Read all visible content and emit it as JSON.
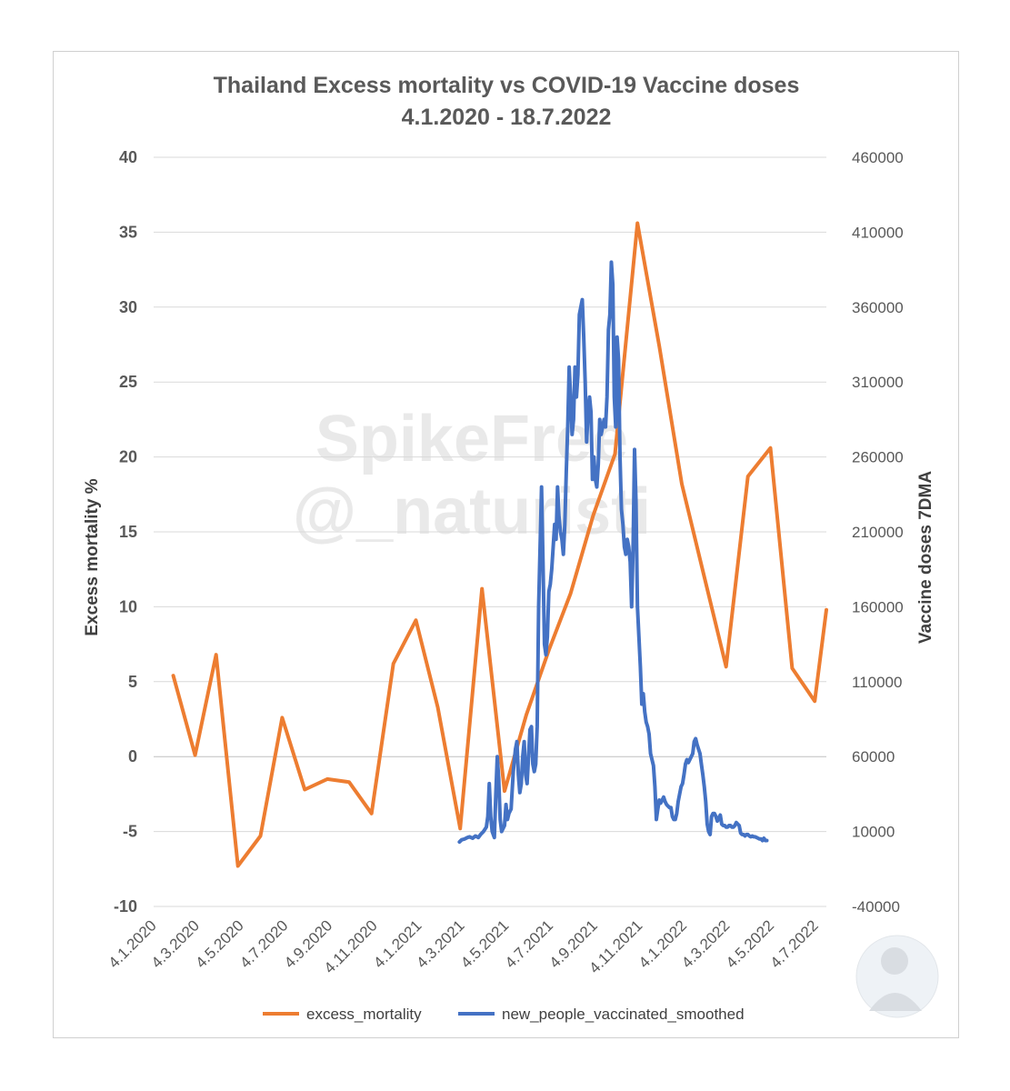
{
  "watermark": {
    "line1": "SpikeFree",
    "line2": "@_naturisti"
  },
  "chart_data": {
    "type": "line",
    "title": "Thailand Excess mortality vs COVID-19 Vaccine doses",
    "subtitle": "4.1.2020 - 18.7.2022",
    "ylabel": "Excess mortality %",
    "y2label": "Vaccine doses 7DMA",
    "ylim": [
      -10,
      40
    ],
    "y2lim": [
      -40000,
      460000
    ],
    "yticks": [
      "-10",
      "-5",
      "0",
      "5",
      "10",
      "15",
      "20",
      "25",
      "30",
      "35",
      "40"
    ],
    "y2ticks": [
      "-40000",
      "10000",
      "60000",
      "110000",
      "160000",
      "210000",
      "260000",
      "310000",
      "360000",
      "410000",
      "460000"
    ],
    "x_range_days": [
      0,
      926
    ],
    "xtick_days": [
      0,
      59,
      120,
      181,
      242,
      304,
      365,
      424,
      485,
      546,
      607,
      669,
      730,
      789,
      850,
      911
    ],
    "xtick_labels": [
      "4.1.2020",
      "4.3.2020",
      "4.5.2020",
      "4.7.2020",
      "4.9.2020",
      "4.11.2020",
      "4.1.2021",
      "4.3.2021",
      "4.5.2021",
      "4.7.2021",
      "4.9.2021",
      "4.11.2021",
      "4.1.2022",
      "4.3.2022",
      "4.5.2022",
      "4.7.2022"
    ],
    "legend_position": "bottom",
    "series": [
      {
        "name": "excess_mortality",
        "axis": "left",
        "color": "#ED7D31",
        "points": [
          [
            27,
            5.4
          ],
          [
            57,
            0.1
          ],
          [
            86,
            6.8
          ],
          [
            116,
            -7.3
          ],
          [
            147,
            -5.3
          ],
          [
            177,
            2.6
          ],
          [
            208,
            -2.2
          ],
          [
            239,
            -1.5
          ],
          [
            269,
            -1.7
          ],
          [
            300,
            -3.8
          ],
          [
            330,
            6.2
          ],
          [
            361,
            9.1
          ],
          [
            391,
            3.3
          ],
          [
            422,
            -4.8
          ],
          [
            452,
            11.2
          ],
          [
            483,
            -2.3
          ],
          [
            513,
            2.8
          ],
          [
            544,
            7.1
          ],
          [
            574,
            10.9
          ],
          [
            605,
            16.1
          ],
          [
            635,
            20.2
          ],
          [
            666,
            35.6
          ],
          [
            696,
            27.4
          ],
          [
            727,
            18.2
          ],
          [
            757,
            12.2
          ],
          [
            788,
            6.0
          ],
          [
            818,
            18.7
          ],
          [
            849,
            20.6
          ],
          [
            879,
            5.9
          ],
          [
            910,
            3.7
          ],
          [
            926,
            9.8
          ]
        ]
      },
      {
        "name": "new_people_vaccinated_smoothed",
        "axis": "right",
        "color": "#4472C4",
        "points": [
          [
            421,
            3000
          ],
          [
            424,
            4500
          ],
          [
            428,
            5000
          ],
          [
            432,
            6000
          ],
          [
            435,
            6500
          ],
          [
            439,
            5500
          ],
          [
            443,
            7000
          ],
          [
            447,
            6000
          ],
          [
            450,
            8000
          ],
          [
            454,
            10000
          ],
          [
            458,
            13000
          ],
          [
            460,
            20000
          ],
          [
            462,
            42000
          ],
          [
            464,
            20000
          ],
          [
            466,
            10000
          ],
          [
            469,
            6000
          ],
          [
            471,
            35000
          ],
          [
            473,
            60000
          ],
          [
            475,
            45000
          ],
          [
            477,
            18000
          ],
          [
            479,
            10000
          ],
          [
            481,
            12000
          ],
          [
            483,
            14000
          ],
          [
            485,
            28000
          ],
          [
            487,
            18000
          ],
          [
            489,
            22000
          ],
          [
            492,
            25000
          ],
          [
            495,
            50000
          ],
          [
            498,
            65000
          ],
          [
            500,
            70000
          ],
          [
            502,
            48000
          ],
          [
            504,
            36000
          ],
          [
            506,
            42000
          ],
          [
            508,
            60000
          ],
          [
            510,
            70000
          ],
          [
            512,
            48000
          ],
          [
            514,
            42000
          ],
          [
            516,
            60000
          ],
          [
            518,
            78000
          ],
          [
            520,
            80000
          ],
          [
            522,
            55000
          ],
          [
            524,
            50000
          ],
          [
            526,
            55000
          ],
          [
            528,
            80000
          ],
          [
            530,
            160000
          ],
          [
            532,
            200000
          ],
          [
            534,
            240000
          ],
          [
            536,
            190000
          ],
          [
            538,
            135000
          ],
          [
            540,
            128000
          ],
          [
            542,
            140000
          ],
          [
            544,
            170000
          ],
          [
            546,
            175000
          ],
          [
            548,
            185000
          ],
          [
            550,
            200000
          ],
          [
            552,
            215000
          ],
          [
            554,
            205000
          ],
          [
            556,
            240000
          ],
          [
            558,
            220000
          ],
          [
            560,
            210000
          ],
          [
            562,
            205000
          ],
          [
            564,
            195000
          ],
          [
            566,
            215000
          ],
          [
            568,
            250000
          ],
          [
            570,
            280000
          ],
          [
            572,
            320000
          ],
          [
            574,
            300000
          ],
          [
            576,
            275000
          ],
          [
            578,
            285000
          ],
          [
            580,
            320000
          ],
          [
            582,
            300000
          ],
          [
            584,
            315000
          ],
          [
            586,
            355000
          ],
          [
            588,
            360000
          ],
          [
            590,
            365000
          ],
          [
            592,
            340000
          ],
          [
            594,
            310000
          ],
          [
            596,
            270000
          ],
          [
            598,
            290000
          ],
          [
            600,
            300000
          ],
          [
            602,
            290000
          ],
          [
            604,
            245000
          ],
          [
            606,
            260000
          ],
          [
            608,
            245000
          ],
          [
            610,
            240000
          ],
          [
            612,
            255000
          ],
          [
            614,
            285000
          ],
          [
            616,
            275000
          ],
          [
            618,
            280000
          ],
          [
            620,
            285000
          ],
          [
            622,
            280000
          ],
          [
            624,
            300000
          ],
          [
            626,
            345000
          ],
          [
            628,
            355000
          ],
          [
            630,
            390000
          ],
          [
            632,
            375000
          ],
          [
            634,
            300000
          ],
          [
            636,
            280000
          ],
          [
            638,
            340000
          ],
          [
            640,
            325000
          ],
          [
            642,
            260000
          ],
          [
            644,
            225000
          ],
          [
            646,
            215000
          ],
          [
            648,
            200000
          ],
          [
            650,
            195000
          ],
          [
            652,
            205000
          ],
          [
            654,
            200000
          ],
          [
            656,
            190000
          ],
          [
            658,
            160000
          ],
          [
            660,
            200000
          ],
          [
            662,
            265000
          ],
          [
            664,
            230000
          ],
          [
            666,
            160000
          ],
          [
            668,
            140000
          ],
          [
            670,
            120000
          ],
          [
            672,
            95000
          ],
          [
            674,
            102000
          ],
          [
            676,
            90000
          ],
          [
            678,
            83000
          ],
          [
            680,
            80000
          ],
          [
            682,
            75000
          ],
          [
            684,
            62000
          ],
          [
            686,
            58000
          ],
          [
            688,
            54000
          ],
          [
            690,
            40000
          ],
          [
            692,
            18000
          ],
          [
            694,
            25000
          ],
          [
            696,
            31000
          ],
          [
            698,
            29000
          ],
          [
            700,
            31000
          ],
          [
            702,
            33000
          ],
          [
            704,
            30000
          ],
          [
            706,
            28000
          ],
          [
            708,
            27000
          ],
          [
            710,
            26000
          ],
          [
            712,
            26000
          ],
          [
            714,
            20000
          ],
          [
            716,
            18000
          ],
          [
            718,
            18000
          ],
          [
            720,
            22000
          ],
          [
            722,
            30000
          ],
          [
            724,
            35000
          ],
          [
            726,
            40000
          ],
          [
            728,
            42000
          ],
          [
            730,
            48000
          ],
          [
            732,
            55000
          ],
          [
            734,
            58000
          ],
          [
            736,
            56000
          ],
          [
            738,
            58000
          ],
          [
            740,
            60000
          ],
          [
            742,
            62000
          ],
          [
            744,
            70000
          ],
          [
            746,
            72000
          ],
          [
            748,
            68000
          ],
          [
            750,
            65000
          ],
          [
            752,
            62000
          ],
          [
            754,
            55000
          ],
          [
            756,
            48000
          ],
          [
            758,
            40000
          ],
          [
            760,
            30000
          ],
          [
            762,
            15000
          ],
          [
            764,
            10000
          ],
          [
            766,
            8000
          ],
          [
            768,
            20000
          ],
          [
            770,
            22000
          ],
          [
            772,
            22000
          ],
          [
            774,
            20000
          ],
          [
            776,
            17000
          ],
          [
            778,
            19000
          ],
          [
            780,
            21000
          ],
          [
            782,
            15000
          ],
          [
            784,
            14000
          ],
          [
            786,
            14000
          ],
          [
            788,
            13000
          ],
          [
            790,
            13000
          ],
          [
            792,
            14000
          ],
          [
            794,
            14000
          ],
          [
            796,
            13000
          ],
          [
            798,
            13000
          ],
          [
            800,
            14000
          ],
          [
            802,
            16000
          ],
          [
            804,
            15000
          ],
          [
            806,
            14000
          ],
          [
            808,
            9000
          ],
          [
            810,
            8000
          ],
          [
            812,
            8000
          ],
          [
            814,
            7000
          ],
          [
            816,
            8000
          ],
          [
            818,
            8000
          ],
          [
            820,
            7000
          ],
          [
            822,
            6500
          ],
          [
            824,
            7000
          ],
          [
            826,
            6500
          ],
          [
            828,
            6500
          ],
          [
            830,
            6000
          ],
          [
            832,
            5500
          ],
          [
            834,
            5000
          ],
          [
            836,
            5000
          ],
          [
            838,
            4000
          ],
          [
            840,
            5500
          ],
          [
            842,
            4000
          ],
          [
            844,
            4000
          ]
        ]
      }
    ]
  }
}
